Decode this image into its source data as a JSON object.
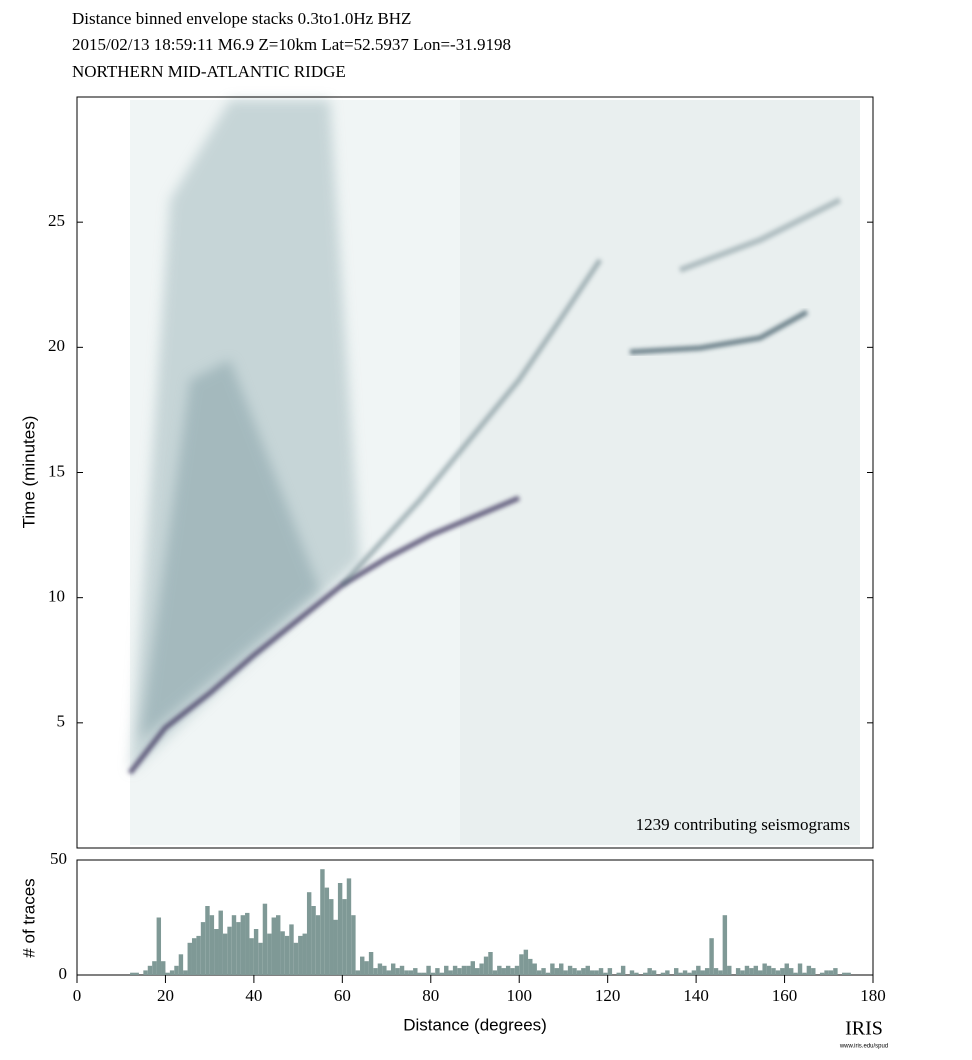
{
  "chart_data": [
    {
      "type": "heatmap",
      "title": "Distance binned envelope stacks  0.3to1.0Hz  BHZ",
      "subtitle": "2015/02/13  18:59:11  M6.9  Z=10km Lat=52.5937 Lon=-31.9198",
      "region": "NORTHERN MID-ATLANTIC RIDGE",
      "annotation": "1239 contributing seismograms",
      "ylabel": "Time (minutes)",
      "xlim": [
        0,
        180
      ],
      "ylim": [
        0,
        30
      ],
      "yticks": [
        5,
        10,
        15,
        20,
        25
      ]
    },
    {
      "type": "histogram",
      "ylabel": "# of traces",
      "xlabel": "Distance (degrees)",
      "color": "#7f9996",
      "xlim": [
        0,
        180
      ],
      "xticks": [
        0,
        20,
        40,
        60,
        80,
        100,
        120,
        140,
        160,
        180
      ],
      "ylim": [
        0,
        50
      ],
      "yticks": [
        0,
        50
      ],
      "bins": [
        11,
        12,
        13,
        14,
        15,
        16,
        17,
        18,
        19,
        20,
        21,
        22,
        23,
        24,
        25,
        26,
        27,
        28,
        29,
        30,
        31,
        32,
        33,
        34,
        35,
        36,
        37,
        38,
        39,
        40,
        41,
        42,
        43,
        44,
        45,
        46,
        47,
        48,
        49,
        50,
        51,
        52,
        53,
        54,
        55,
        56,
        57,
        58,
        59,
        60,
        61,
        62,
        63,
        64,
        65,
        66,
        67,
        68,
        69,
        70,
        71,
        72,
        73,
        74,
        75,
        76,
        77,
        78,
        79,
        80,
        81,
        82,
        83,
        84,
        85,
        86,
        87,
        88,
        89,
        90,
        91,
        92,
        93,
        94,
        95,
        96,
        97,
        98,
        99,
        100,
        101,
        102,
        103,
        104,
        105,
        106,
        107,
        108,
        109,
        110,
        111,
        112,
        113,
        114,
        115,
        116,
        117,
        118,
        119,
        120,
        121,
        122,
        123,
        124,
        125,
        126,
        127,
        128,
        129,
        130,
        131,
        132,
        133,
        134,
        135,
        136,
        137,
        138,
        139,
        140,
        141,
        142,
        143,
        144,
        145,
        146,
        147,
        148,
        149,
        150,
        151,
        152,
        153,
        154,
        155,
        156,
        157,
        158,
        159,
        160,
        161,
        162,
        163,
        164,
        165,
        166,
        167,
        168,
        169,
        170,
        171,
        172,
        173,
        174,
        175
      ],
      "counts": [
        0,
        1,
        1,
        0,
        2,
        4,
        6,
        25,
        6,
        1,
        2,
        4,
        9,
        2,
        14,
        16,
        17,
        23,
        30,
        26,
        20,
        28,
        18,
        21,
        26,
        23,
        26,
        27,
        16,
        20,
        14,
        31,
        18,
        25,
        26,
        19,
        17,
        22,
        14,
        17,
        18,
        36,
        30,
        26,
        46,
        38,
        33,
        24,
        40,
        33,
        42,
        26,
        2,
        8,
        6,
        10,
        3,
        5,
        4,
        2,
        5,
        3,
        4,
        2,
        2,
        3,
        1,
        1,
        4,
        1,
        3,
        1,
        4,
        2,
        4,
        3,
        4,
        4,
        6,
        3,
        5,
        8,
        10,
        2,
        4,
        3,
        4,
        3,
        4,
        9,
        11,
        7,
        5,
        2,
        3,
        1,
        5,
        3,
        5,
        2,
        4,
        3,
        2,
        3,
        4,
        2,
        2,
        3,
        1,
        3,
        0,
        1,
        4,
        0,
        2,
        1,
        0,
        1,
        3,
        2,
        0,
        1,
        2,
        0,
        3,
        1,
        2,
        1,
        2,
        4,
        2,
        3,
        16,
        3,
        2,
        26,
        4,
        0,
        3,
        2,
        4,
        3,
        4,
        2,
        5,
        4,
        3,
        2,
        3,
        5,
        3,
        1,
        5,
        1,
        4,
        3,
        0,
        1,
        2,
        2,
        3,
        0,
        1,
        1
      ]
    },
    {
      "type": "logo",
      "text": "IRIS",
      "url": "www.iris.edu/spud"
    }
  ]
}
